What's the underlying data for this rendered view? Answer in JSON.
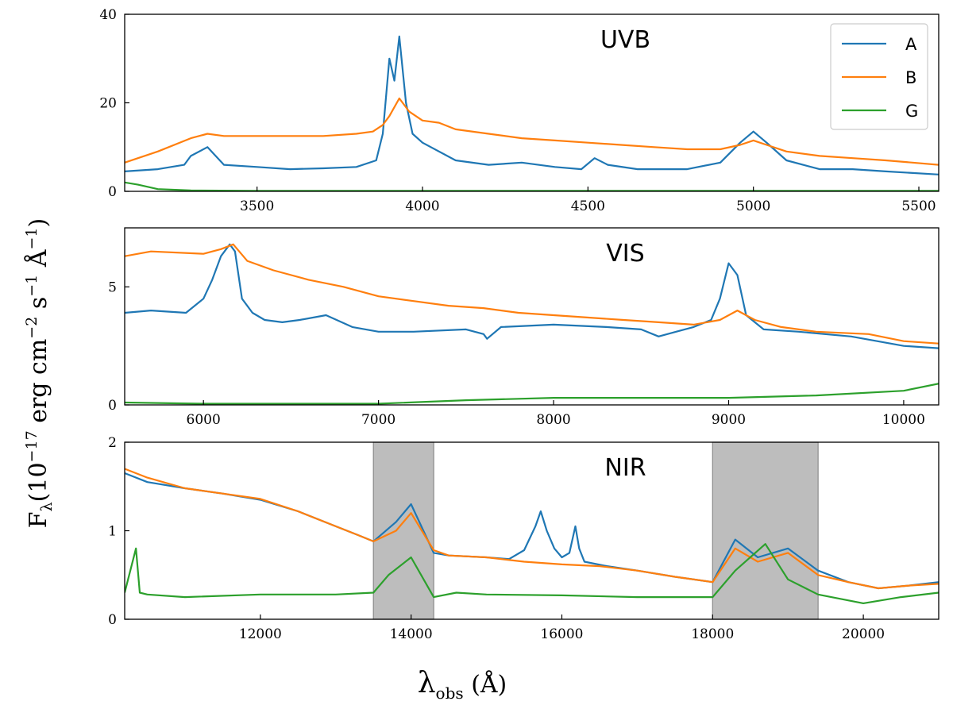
{
  "chart_data": [
    {
      "type": "line",
      "title": "UVB",
      "xlim": [
        3100,
        5560
      ],
      "ylim": [
        0,
        40
      ],
      "xticks": [
        "3500",
        "4000",
        "4500",
        "5000",
        "5500"
      ],
      "yticks": [
        "0",
        "20",
        "40"
      ],
      "legend": {
        "placement": "top-right",
        "entries": [
          "A",
          "B",
          "G"
        ]
      },
      "series": [
        {
          "name": "A",
          "color": "#1f77b4",
          "x": [
            3100,
            3200,
            3280,
            3300,
            3350,
            3400,
            3500,
            3600,
            3700,
            3800,
            3860,
            3880,
            3900,
            3915,
            3930,
            3950,
            3970,
            4000,
            4100,
            4200,
            4300,
            4400,
            4480,
            4520,
            4560,
            4650,
            4800,
            4900,
            4960,
            5000,
            5040,
            5100,
            5200,
            5300,
            5400,
            5560
          ],
          "y": [
            4.5,
            5,
            6,
            8,
            10,
            6,
            5.5,
            5,
            5.2,
            5.5,
            7,
            13,
            30,
            25,
            35,
            20,
            13,
            11,
            7,
            6,
            6.5,
            5.5,
            5,
            7.5,
            6,
            5,
            5,
            6.5,
            11,
            13.5,
            11,
            7,
            5,
            5,
            4.5,
            3.8
          ]
        },
        {
          "name": "B",
          "color": "#ff7f0e",
          "x": [
            3100,
            3200,
            3300,
            3350,
            3400,
            3500,
            3600,
            3700,
            3800,
            3850,
            3880,
            3900,
            3930,
            3960,
            4000,
            4050,
            4100,
            4200,
            4300,
            4400,
            4500,
            4600,
            4700,
            4800,
            4900,
            4960,
            5000,
            5040,
            5100,
            5200,
            5300,
            5400,
            5560
          ],
          "y": [
            6.5,
            9,
            12,
            13,
            12.5,
            12.5,
            12.5,
            12.5,
            13,
            13.5,
            15,
            17,
            21,
            18,
            16,
            15.5,
            14,
            13,
            12,
            11.5,
            11,
            10.5,
            10,
            9.5,
            9.5,
            10.5,
            11.5,
            10.5,
            9,
            8,
            7.5,
            7,
            6
          ]
        },
        {
          "name": "G",
          "color": "#2ca02c",
          "x": [
            3100,
            3140,
            3200,
            3300,
            3500,
            4000,
            4500,
            5000,
            5560
          ],
          "y": [
            2,
            1.5,
            0.5,
            0.2,
            0.1,
            0.1,
            0.1,
            0.1,
            0.1
          ]
        }
      ]
    },
    {
      "type": "line",
      "title": "VIS",
      "xlim": [
        5550,
        10200
      ],
      "ylim": [
        0,
        7.5
      ],
      "xticks": [
        "6000",
        "7000",
        "8000",
        "9000",
        "10000"
      ],
      "yticks": [
        "0",
        "5"
      ],
      "series": [
        {
          "name": "A",
          "color": "#1f77b4",
          "x": [
            5550,
            5700,
            5900,
            6000,
            6050,
            6100,
            6150,
            6180,
            6220,
            6280,
            6350,
            6450,
            6550,
            6700,
            6850,
            7000,
            7200,
            7500,
            7600,
            7620,
            7700,
            8000,
            8300,
            8500,
            8600,
            8700,
            8800,
            8900,
            8950,
            9000,
            9050,
            9100,
            9200,
            9400,
            9700,
            10000,
            10200
          ],
          "y": [
            3.9,
            4.0,
            3.9,
            4.5,
            5.3,
            6.3,
            6.8,
            6.5,
            4.5,
            3.9,
            3.6,
            3.5,
            3.6,
            3.8,
            3.3,
            3.1,
            3.1,
            3.2,
            3.0,
            2.8,
            3.3,
            3.4,
            3.3,
            3.2,
            2.9,
            3.1,
            3.3,
            3.6,
            4.5,
            6.0,
            5.5,
            3.8,
            3.2,
            3.1,
            2.9,
            2.5,
            2.4
          ]
        },
        {
          "name": "B",
          "color": "#ff7f0e",
          "x": [
            5550,
            5700,
            6000,
            6100,
            6170,
            6250,
            6400,
            6600,
            6800,
            7000,
            7200,
            7400,
            7600,
            7800,
            8000,
            8200,
            8400,
            8600,
            8800,
            8950,
            9050,
            9150,
            9300,
            9500,
            9800,
            10000,
            10200
          ],
          "y": [
            6.3,
            6.5,
            6.4,
            6.6,
            6.8,
            6.1,
            5.7,
            5.3,
            5.0,
            4.6,
            4.4,
            4.2,
            4.1,
            3.9,
            3.8,
            3.7,
            3.6,
            3.5,
            3.4,
            3.6,
            4.0,
            3.6,
            3.3,
            3.1,
            3.0,
            2.7,
            2.6
          ]
        },
        {
          "name": "G",
          "color": "#2ca02c",
          "x": [
            5550,
            6000,
            6500,
            7000,
            7500,
            8000,
            8500,
            9000,
            9500,
            10000,
            10200
          ],
          "y": [
            0.1,
            0.05,
            0.05,
            0.05,
            0.2,
            0.3,
            0.3,
            0.3,
            0.4,
            0.6,
            0.9
          ]
        }
      ]
    },
    {
      "type": "line",
      "title": "NIR",
      "xlim": [
        10200,
        21000
      ],
      "ylim": [
        0,
        2
      ],
      "xticks": [
        "12000",
        "14000",
        "16000",
        "18000",
        "20000"
      ],
      "yticks": [
        "0",
        "1",
        "2"
      ],
      "shaded_regions": [
        [
          13500,
          14300
        ],
        [
          18000,
          19400
        ]
      ],
      "series": [
        {
          "name": "A",
          "color": "#1f77b4",
          "x": [
            10200,
            10500,
            11000,
            11500,
            12000,
            12500,
            13000,
            13300,
            13500,
            13800,
            14000,
            14300,
            14500,
            15000,
            15300,
            15500,
            15650,
            15720,
            15800,
            15900,
            16000,
            16100,
            16180,
            16230,
            16300,
            16600,
            17000,
            17500,
            18000,
            18300,
            18600,
            19000,
            19400,
            19800,
            20200,
            20600,
            21000
          ],
          "y": [
            1.65,
            1.55,
            1.48,
            1.42,
            1.35,
            1.22,
            1.05,
            0.95,
            0.88,
            1.1,
            1.3,
            0.75,
            0.72,
            0.7,
            0.68,
            0.78,
            1.05,
            1.22,
            1.0,
            0.8,
            0.7,
            0.75,
            1.05,
            0.8,
            0.65,
            0.6,
            0.55,
            0.48,
            0.42,
            0.9,
            0.7,
            0.8,
            0.55,
            0.42,
            0.35,
            0.38,
            0.42
          ]
        },
        {
          "name": "B",
          "color": "#ff7f0e",
          "x": [
            10200,
            10500,
            11000,
            11500,
            12000,
            12500,
            13000,
            13300,
            13500,
            13800,
            14000,
            14300,
            14500,
            15000,
            15500,
            16000,
            16500,
            17000,
            17500,
            18000,
            18300,
            18600,
            19000,
            19400,
            19800,
            20200,
            20600,
            21000
          ],
          "y": [
            1.7,
            1.6,
            1.48,
            1.42,
            1.36,
            1.22,
            1.05,
            0.95,
            0.88,
            1.0,
            1.2,
            0.78,
            0.72,
            0.7,
            0.65,
            0.62,
            0.6,
            0.55,
            0.48,
            0.42,
            0.8,
            0.65,
            0.75,
            0.5,
            0.42,
            0.35,
            0.38,
            0.4
          ]
        },
        {
          "name": "G",
          "color": "#2ca02c",
          "x": [
            10200,
            10350,
            10400,
            10500,
            11000,
            12000,
            13000,
            13500,
            13700,
            14000,
            14300,
            14600,
            15000,
            16000,
            17000,
            18000,
            18300,
            18700,
            19000,
            19400,
            20000,
            20500,
            21000
          ],
          "y": [
            0.3,
            0.8,
            0.3,
            0.28,
            0.25,
            0.28,
            0.28,
            0.3,
            0.5,
            0.7,
            0.25,
            0.3,
            0.28,
            0.27,
            0.25,
            0.25,
            0.55,
            0.85,
            0.45,
            0.28,
            0.18,
            0.25,
            0.3
          ]
        }
      ]
    }
  ],
  "axes": {
    "ylabel": "F_λ (10^−17 erg cm^−2 s^−1 Å^−1)",
    "ylabel_main": "F",
    "ylabel_sub": "λ",
    "ylabel_paren_open": "(10",
    "ylabel_exp1": "−17",
    "ylabel_mid": " erg cm",
    "ylabel_exp2": "−2",
    "ylabel_mid2": " s",
    "ylabel_exp3": "−1",
    "ylabel_end": " Å",
    "ylabel_exp4": "−1",
    "ylabel_close": ")",
    "xlabel": "λ_obs (Å)",
    "xlabel_main": "λ",
    "xlabel_sub": "obs",
    "xlabel_rest": " (Å)"
  }
}
